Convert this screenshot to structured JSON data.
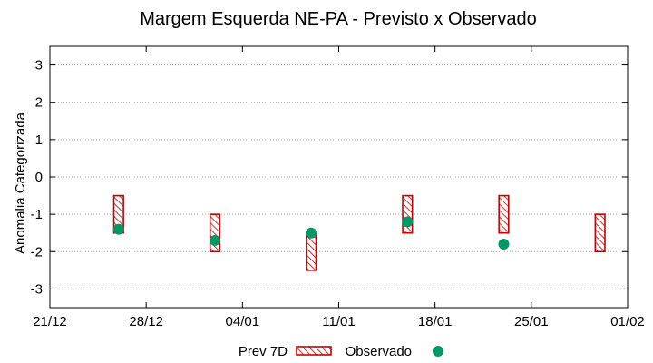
{
  "chart_data": {
    "type": "bar",
    "title": "Margem Esquerda NE-PA - Previsto x Observado",
    "ylabel": "Anomalia Categorizada",
    "xlabel": "",
    "ylim": [
      -3.5,
      3.5
    ],
    "yticks": [
      3,
      2,
      1,
      0,
      -1,
      -2,
      -3
    ],
    "ytick_labels": [
      "3",
      "2",
      "1",
      "0",
      "-1",
      "-2",
      "-3"
    ],
    "xlim": [
      "2021-12-21",
      "2022-02-01"
    ],
    "xticks": [
      "2021-12-21",
      "2021-12-28",
      "2022-01-04",
      "2022-01-11",
      "2022-01-18",
      "2022-01-25",
      "2022-02-01"
    ],
    "xtick_labels": [
      "21/12",
      "28/12",
      "04/01",
      "11/01",
      "18/01",
      "25/01",
      "01/02"
    ],
    "grid": true,
    "legend_position": "bottom",
    "series": [
      {
        "name": "Prev 7D",
        "color": "#cc0000",
        "style": "hatched-range",
        "values": [
          {
            "x": "2021-12-26",
            "low": -1.5,
            "high": -0.5
          },
          {
            "x": "2022-01-02",
            "low": -2.0,
            "high": -1.0
          },
          {
            "x": "2022-01-09",
            "low": -2.5,
            "high": -1.5
          },
          {
            "x": "2022-01-16",
            "low": -1.5,
            "high": -0.5
          },
          {
            "x": "2022-01-23",
            "low": -1.5,
            "high": -0.5
          },
          {
            "x": "2022-01-30",
            "low": -2.0,
            "high": -1.0
          }
        ]
      },
      {
        "name": "Observado",
        "color": "#009966",
        "style": "point",
        "values": [
          {
            "x": "2021-12-26",
            "y": -1.4
          },
          {
            "x": "2022-01-02",
            "y": -1.7
          },
          {
            "x": "2022-01-09",
            "y": -1.5
          },
          {
            "x": "2022-01-16",
            "y": -1.2
          },
          {
            "x": "2022-01-23",
            "y": -1.8
          }
        ]
      }
    ]
  }
}
